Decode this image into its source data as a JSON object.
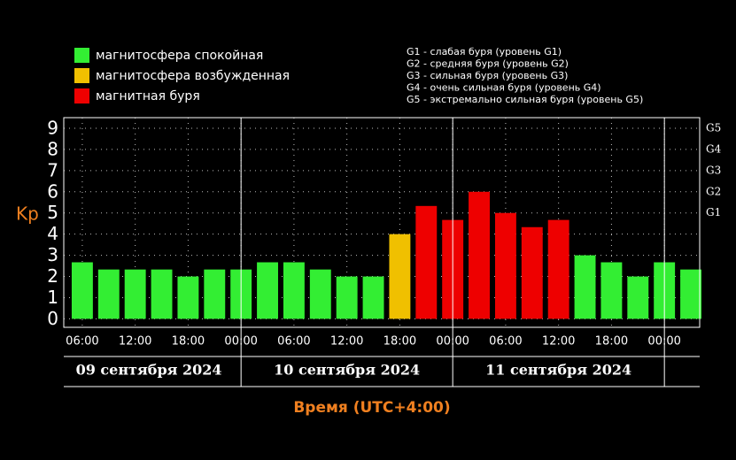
{
  "chart_data": {
    "type": "bar",
    "legend": [
      {
        "name": "магнитосфера спокойная",
        "color": "#33ee33"
      },
      {
        "name": "магнитосфера возбужденная",
        "color": "#f0c000"
      },
      {
        "name": "магнитная буря",
        "color": "#ee0000"
      }
    ],
    "storm_levels": [
      "G1 - слабая буря (уровень G1)",
      "G2 - средняя буря (уровень G2)",
      "G3 - сильная буря (уровень G3)",
      "G4 - очень сильная буря (уровень G4)",
      "G5 - экстремально сильная буря (уровень G5)"
    ],
    "ylabel": "Kp",
    "xlabel": "Время (UTC+4:00)",
    "x": [
      6,
      9,
      12,
      15,
      18,
      21,
      24,
      27,
      30,
      33,
      36,
      39,
      42,
      45,
      48,
      51,
      54,
      57,
      60,
      63,
      66,
      69,
      72,
      75
    ],
    "series": [
      {
        "name": "Kp",
        "values": [
          2.67,
          2.33,
          2.33,
          2.33,
          2.0,
          2.33,
          2.33,
          2.67,
          2.67,
          2.33,
          2.0,
          2.0,
          4.0,
          5.33,
          4.67,
          6.0,
          5.0,
          4.33,
          4.67,
          3.0,
          2.67,
          2.0,
          2.67,
          2.33
        ],
        "colors": [
          "#33ee33",
          "#33ee33",
          "#33ee33",
          "#33ee33",
          "#33ee33",
          "#33ee33",
          "#33ee33",
          "#33ee33",
          "#33ee33",
          "#33ee33",
          "#33ee33",
          "#33ee33",
          "#f0c000",
          "#ee0000",
          "#ee0000",
          "#ee0000",
          "#ee0000",
          "#ee0000",
          "#ee0000",
          "#33ee33",
          "#33ee33",
          "#33ee33",
          "#33ee33",
          "#33ee33"
        ]
      }
    ],
    "xlim": [
      3.9,
      76
    ],
    "xticks": [
      {
        "value": 6,
        "label": "06:00"
      },
      {
        "value": 12,
        "label": "12:00"
      },
      {
        "value": 18,
        "label": "18:00"
      },
      {
        "value": 24,
        "label": "00:00"
      },
      {
        "value": 30,
        "label": "06:00"
      },
      {
        "value": 36,
        "label": "12:00"
      },
      {
        "value": 42,
        "label": "18:00"
      },
      {
        "value": 48,
        "label": "00:00"
      },
      {
        "value": 54,
        "label": "06:00"
      },
      {
        "value": 60,
        "label": "12:00"
      },
      {
        "value": 66,
        "label": "18:00"
      },
      {
        "value": 72,
        "label": "00:00"
      }
    ],
    "days": [
      "09 сентября 2024",
      "10 сентября 2024",
      "11 сентября 2024"
    ],
    "ylim": [
      -0.4,
      9.5
    ],
    "yticks": [
      0,
      1,
      2,
      3,
      4,
      5,
      6,
      7,
      8,
      9
    ],
    "y2lim": [
      -0.4,
      9.5
    ],
    "y2ticks": [
      {
        "value": 5,
        "label": "G1"
      },
      {
        "value": 6,
        "label": "G2"
      },
      {
        "value": 7,
        "label": "G3"
      },
      {
        "value": 8,
        "label": "G4"
      },
      {
        "value": 9,
        "label": "G5"
      }
    ],
    "grid": true
  }
}
